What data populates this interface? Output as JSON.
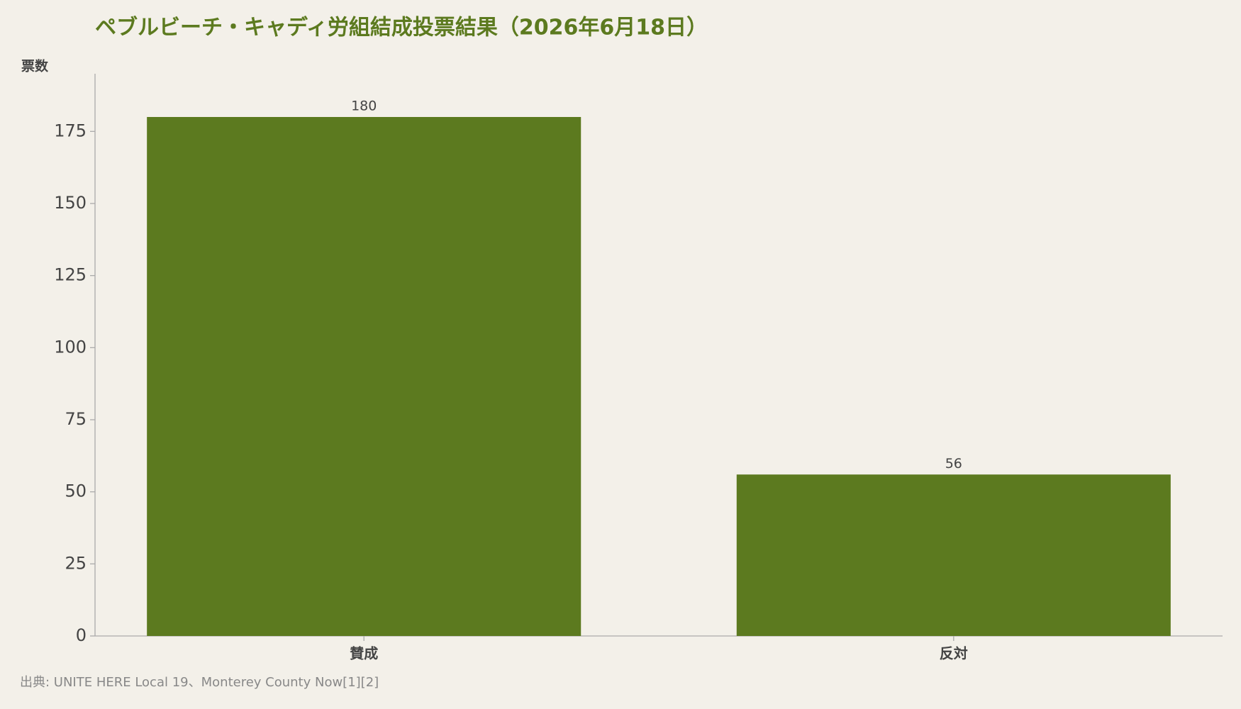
{
  "chart_data": {
    "type": "bar",
    "title": "ペブルビーチ・キャディ労組結成投票結果（2026年6月18日）",
    "y_label": "票数",
    "source": "出典: UNITE HERE Local 19、Monterey County Now[1][2]",
    "categories": [
      "賛成",
      "反対"
    ],
    "values": [
      180,
      56
    ],
    "color": "#5c7a1f",
    "ylim": [
      0,
      195
    ],
    "yticks": [
      0,
      25,
      50,
      75,
      100,
      125,
      150,
      175
    ],
    "grid": false
  }
}
